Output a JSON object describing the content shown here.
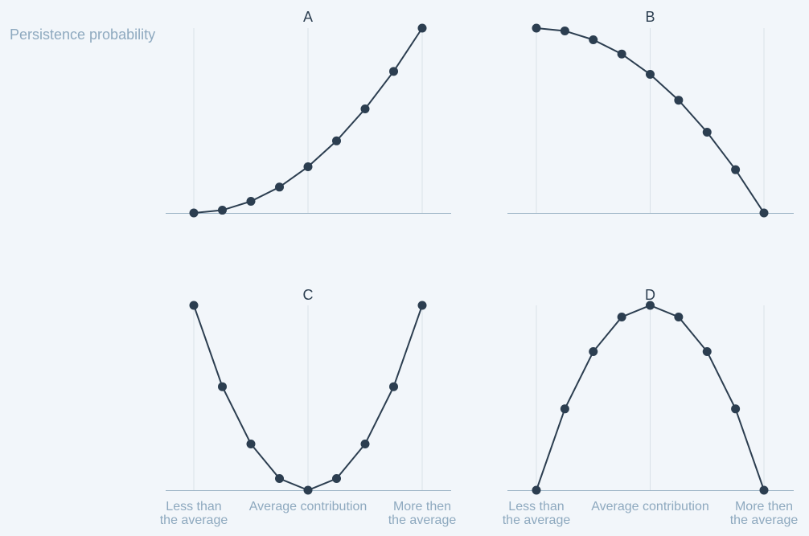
{
  "ylabel": "Persistence probability",
  "colors": {
    "line": "#2c3e50",
    "axis": "#9db4c6",
    "grid": "#d9e1e8",
    "tick_text": "#8ea9bf",
    "title": "#2c3e50"
  },
  "chart_data": [
    {
      "type": "line",
      "title": "A",
      "x": [
        0,
        1,
        2,
        3,
        4,
        5,
        6,
        7,
        8
      ],
      "values": [
        0,
        0.015,
        0.063,
        0.14,
        0.25,
        0.39,
        0.563,
        0.766,
        1
      ],
      "ylim": [
        0,
        1
      ],
      "xticks": [],
      "grid_x": [
        0,
        4,
        8
      ]
    },
    {
      "type": "line",
      "title": "B",
      "x": [
        0,
        1,
        2,
        3,
        4,
        5,
        6,
        7,
        8
      ],
      "values": [
        1,
        0.985,
        0.937,
        0.86,
        0.75,
        0.61,
        0.437,
        0.234,
        0
      ],
      "ylim": [
        0,
        1
      ],
      "xticks": [],
      "grid_x": [
        0,
        4,
        8
      ]
    },
    {
      "type": "line",
      "title": "C",
      "x": [
        0,
        1,
        2,
        3,
        4,
        5,
        6,
        7,
        8
      ],
      "values": [
        1,
        0.56,
        0.25,
        0.063,
        0,
        0.063,
        0.25,
        0.56,
        1
      ],
      "ylim": [
        0,
        1
      ],
      "xticks": [
        {
          "x": 0,
          "lines": [
            "Less than",
            "the average"
          ]
        },
        {
          "x": 4,
          "lines": [
            "Average contribution"
          ]
        },
        {
          "x": 8,
          "lines": [
            "More then",
            "the average"
          ]
        }
      ],
      "grid_x": [
        0,
        4,
        8
      ]
    },
    {
      "type": "line",
      "title": "D",
      "x": [
        0,
        1,
        2,
        3,
        4,
        5,
        6,
        7,
        8
      ],
      "values": [
        0,
        0.44,
        0.75,
        0.937,
        1,
        0.937,
        0.75,
        0.44,
        0
      ],
      "ylim": [
        0,
        1
      ],
      "xticks": [
        {
          "x": 0,
          "lines": [
            "Less than",
            "the average"
          ]
        },
        {
          "x": 4,
          "lines": [
            "Average contribution"
          ]
        },
        {
          "x": 8,
          "lines": [
            "More then",
            "the average"
          ]
        }
      ],
      "grid_x": [
        0,
        4,
        8
      ]
    }
  ]
}
